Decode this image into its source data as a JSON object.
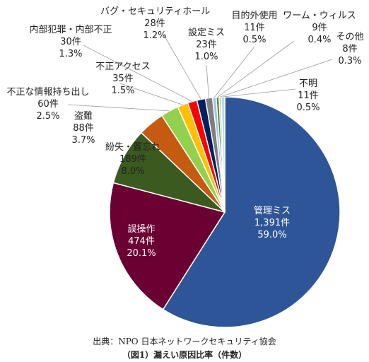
{
  "chart_data": {
    "type": "pie",
    "series": [
      {
        "name": "管理ミス",
        "count": "1,391件",
        "percent": "59.0%",
        "value": 59.0,
        "color": "#2e5597"
      },
      {
        "name": "誤操作",
        "count": "474件",
        "percent": "20.1%",
        "value": 20.1,
        "color": "#6b0033"
      },
      {
        "name": "紛失・置忘れ",
        "count": "189件",
        "percent": "8.0%",
        "value": 8.0,
        "color": "#3a5a20"
      },
      {
        "name": "盗難",
        "count": "88件",
        "percent": "3.7%",
        "value": 3.7,
        "color": "#c55a11"
      },
      {
        "name": "不正な情報持ち出し",
        "count": "60件",
        "percent": "2.5%",
        "value": 2.5,
        "color": "#92d050"
      },
      {
        "name": "不正アクセス",
        "count": "35件",
        "percent": "1.5%",
        "value": 1.5,
        "color": "#ffc000"
      },
      {
        "name": "内部犯罪・内部不正",
        "count": "30件",
        "percent": "1.3%",
        "value": 1.3,
        "color": "#ff0000"
      },
      {
        "name": "バグ・セキュリティホール",
        "count": "28件",
        "percent": "1.2%",
        "value": 1.2,
        "color": "#002060"
      },
      {
        "name": "設定ミス",
        "count": "23件",
        "percent": "1.0%",
        "value": 1.0,
        "color": "#7f7f7f"
      },
      {
        "name": "目的外使用",
        "count": "11件",
        "percent": "0.5%",
        "value": 0.5,
        "color": "#9dc3e6"
      },
      {
        "name": "ワーム・ウィルス",
        "count": "9件",
        "percent": "0.4%",
        "value": 0.4,
        "color": "#548235"
      },
      {
        "name": "その他",
        "count": "8件",
        "percent": "0.3%",
        "value": 0.3,
        "color": "#a9d18e"
      },
      {
        "name": "不明",
        "count": "11件",
        "percent": "0.5%",
        "value": 0.5,
        "color": "#bdd7ee"
      }
    ]
  },
  "source": "出典：NPO 日本ネットワークセキュリティ協会",
  "caption": "（図1）漏えい原因比率（件数）"
}
